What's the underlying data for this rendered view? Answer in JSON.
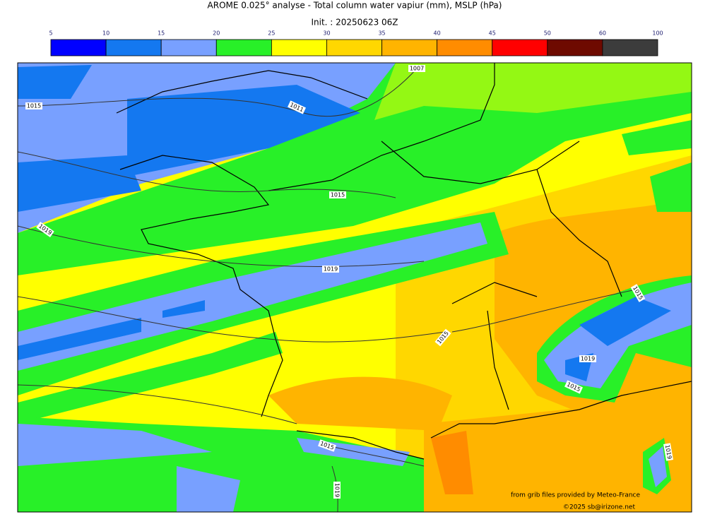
{
  "title": "AROME 0.025° analyse - Total column water vapiur (mm), MSLP (hPa)",
  "subtitle": "Init. : 20250623 06Z",
  "colorbar": {
    "ticks": [
      5,
      10,
      15,
      20,
      25,
      30,
      35,
      40,
      45,
      50,
      60,
      100
    ],
    "colors": [
      "#0000ff",
      "#1478f0",
      "#78a0ff",
      "#28f028",
      "#ffff00",
      "#ffd700",
      "#ffb400",
      "#ff8c00",
      "#ff0000",
      "#6e0a00",
      "#3c3c3c"
    ]
  },
  "isobar_labels": [
    "1007",
    "1015",
    "1011",
    "1015",
    "1019",
    "1019",
    "1015",
    "1015",
    "1019",
    "1015",
    "1015",
    "1019",
    "1019"
  ],
  "credits": [
    "from grib files provided by Meteo-France",
    "©2025 sb@irizone.net"
  ]
}
